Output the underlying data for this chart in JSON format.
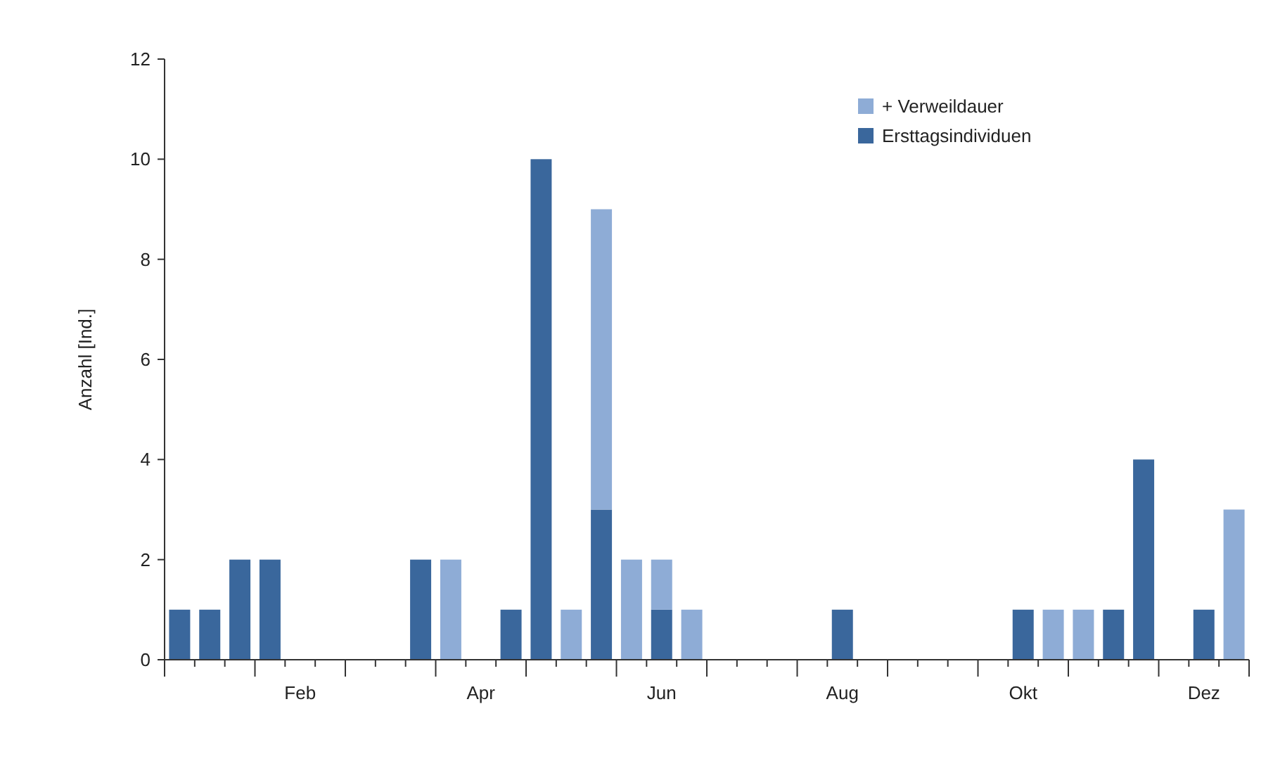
{
  "chart_data": {
    "type": "bar",
    "stacked": true,
    "ylabel": "Anzahl [Ind.]",
    "categories": [
      null,
      null,
      null,
      null,
      "Feb",
      null,
      null,
      null,
      null,
      null,
      "Apr",
      null,
      null,
      null,
      null,
      null,
      "Jun",
      null,
      null,
      null,
      null,
      null,
      "Aug",
      null,
      null,
      null,
      null,
      null,
      "Okt",
      null,
      null,
      null,
      null,
      null,
      "Dez",
      null
    ],
    "series": [
      {
        "name": "Ersttagsindividuen",
        "color": "#3a679c",
        "values": [
          1,
          1,
          2,
          2,
          0,
          0,
          0,
          0,
          2,
          0,
          0,
          1,
          10,
          0,
          3,
          0,
          1,
          0,
          0,
          0,
          0,
          0,
          1,
          0,
          0,
          0,
          0,
          0,
          1,
          0,
          0,
          1,
          4,
          0,
          1,
          0
        ]
      },
      {
        "name": "+ Verweildauer",
        "color": "#8eacd6",
        "values": [
          0,
          0,
          0,
          0,
          0,
          0,
          0,
          0,
          0,
          2,
          0,
          0,
          0,
          1,
          6,
          2,
          1,
          1,
          0,
          0,
          0,
          0,
          0,
          0,
          0,
          0,
          0,
          0,
          0,
          1,
          1,
          0,
          0,
          0,
          0,
          3
        ]
      }
    ],
    "ylim": [
      0,
      12
    ],
    "yticks": [
      0,
      2,
      4,
      6,
      8,
      10,
      12
    ],
    "legend": "top right"
  }
}
